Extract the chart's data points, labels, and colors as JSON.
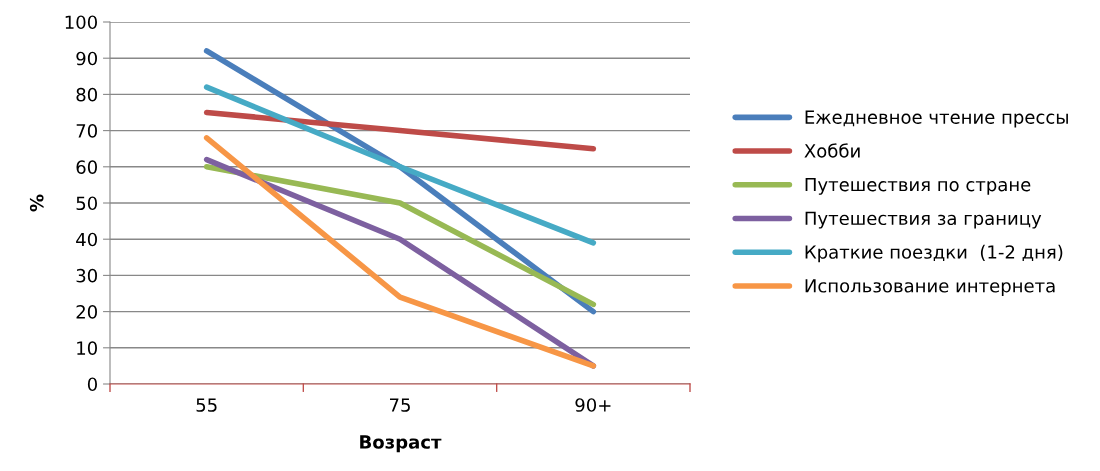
{
  "chart_data": {
    "type": "line",
    "xlabel": "Возраст",
    "ylabel": "%",
    "categories": [
      "55",
      "75",
      "90+"
    ],
    "ylim": [
      0,
      100
    ],
    "yticks": [
      0,
      10,
      20,
      30,
      40,
      50,
      60,
      70,
      80,
      90,
      100
    ],
    "grid": "y",
    "legend": "right",
    "marker": "none",
    "line_style": "solid",
    "series": [
      {
        "name": "Ежедневное чтение прессы",
        "color": "#4a7ebb",
        "values": [
          92,
          60,
          20
        ]
      },
      {
        "name": "Хобби",
        "color": "#be4b48",
        "values": [
          75,
          70,
          65
        ]
      },
      {
        "name": "Путешествия по стране",
        "color": "#98b954",
        "values": [
          60,
          50,
          22
        ]
      },
      {
        "name": "Путешествия за границу",
        "color": "#7d60a0",
        "values": [
          62,
          40,
          5
        ]
      },
      {
        "name": "Краткие поездки  (1-2 дня)",
        "color": "#46aac5",
        "values": [
          82,
          60,
          39
        ]
      },
      {
        "name": "Использование интернета",
        "color": "#f79646",
        "values": [
          68,
          24,
          5
        ]
      }
    ]
  }
}
